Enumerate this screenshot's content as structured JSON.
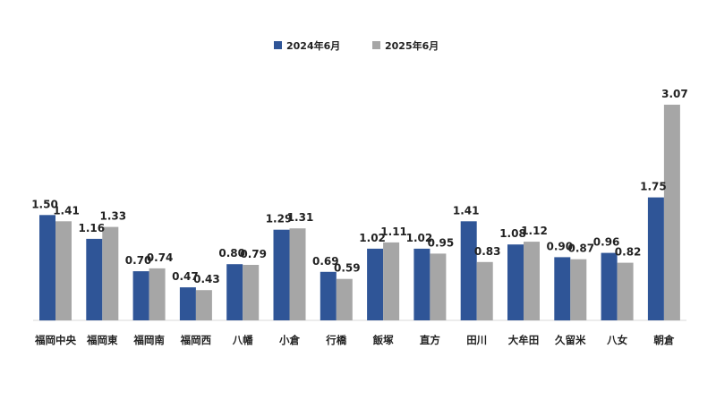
{
  "chart_data": {
    "type": "bar",
    "title": "",
    "xlabel": "",
    "ylabel": "",
    "ylim": [
      0,
      3.2
    ],
    "grid": false,
    "legend_position": "top-center",
    "categories": [
      "福岡中央",
      "福岡東",
      "福岡南",
      "福岡西",
      "八幡",
      "小倉",
      "行橋",
      "飯塚",
      "直方",
      "田川",
      "大牟田",
      "久留米",
      "八女",
      "朝倉"
    ],
    "series": [
      {
        "name": "2024年6月",
        "color": "#2F5597",
        "values": [
          1.5,
          1.16,
          0.7,
          0.47,
          0.8,
          1.29,
          0.69,
          1.02,
          1.02,
          1.41,
          1.08,
          0.9,
          0.96,
          1.75
        ],
        "labels": [
          "1.50",
          "1.16",
          "0.70",
          "0.47",
          "0.80",
          "1.29",
          "0.69",
          "1.02",
          "1.02",
          "1.41",
          "1.08",
          "0.90",
          "0.96",
          "1.75"
        ]
      },
      {
        "name": "2025年6月",
        "color": "#A6A6A6",
        "values": [
          1.41,
          1.33,
          0.74,
          0.43,
          0.79,
          1.31,
          0.59,
          1.11,
          0.95,
          0.83,
          1.12,
          0.87,
          0.82,
          3.07
        ],
        "labels": [
          "1.41",
          "1.33",
          "0.74",
          "0.43",
          "0.79",
          "1.31",
          "0.59",
          "1.11",
          "0.95",
          "0.83",
          "1.12",
          "0.87",
          "0.82",
          "3.07"
        ]
      }
    ]
  }
}
